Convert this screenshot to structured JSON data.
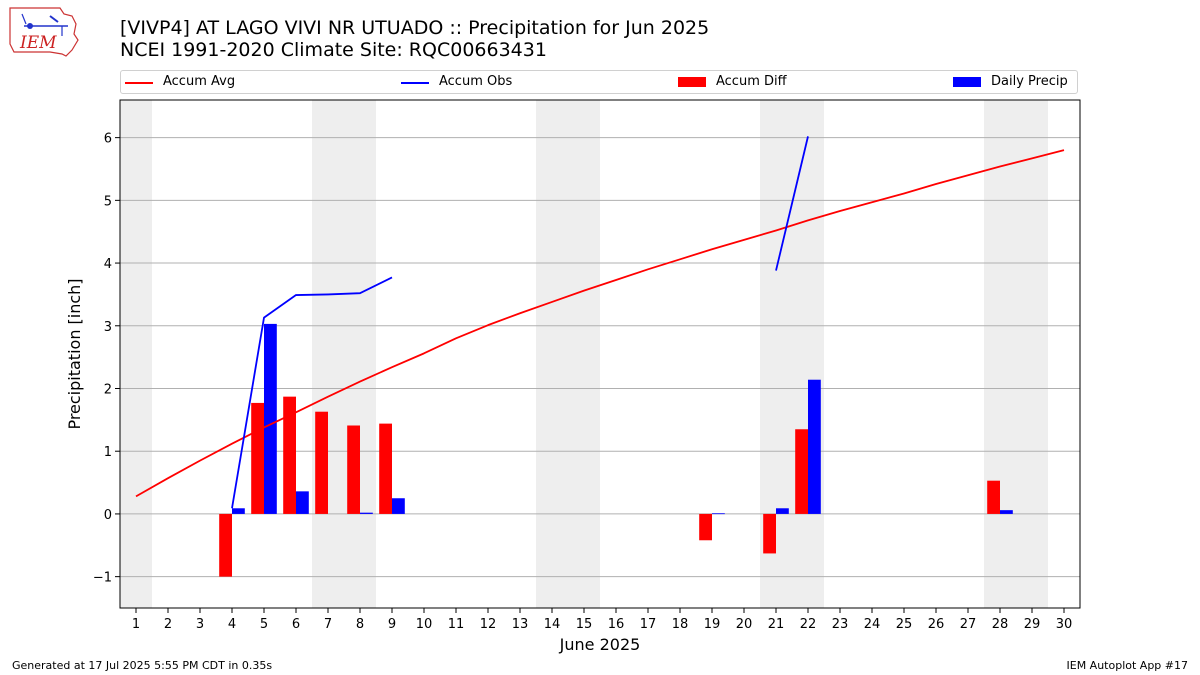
{
  "header": {
    "logo_text": "IEM",
    "title_line1": "[VIVP4] AT LAGO VIVI NR UTUADO :: Precipitation for Jun 2025",
    "title_line2": "NCEI 1991-2020 Climate Site: RQC00663431"
  },
  "legend": {
    "items": [
      {
        "label": "Accum Avg",
        "kind": "line",
        "color": "#ff0000"
      },
      {
        "label": "Accum Obs",
        "kind": "line",
        "color": "#0000ff"
      },
      {
        "label": "Accum Diff",
        "kind": "box",
        "color": "#ff0000"
      },
      {
        "label": "Daily Precip",
        "kind": "box",
        "color": "#0000ff"
      }
    ]
  },
  "footer": {
    "left": "Generated at 17 Jul 2025 5:55 PM CDT in 0.35s",
    "right": "IEM Autoplot App #17"
  },
  "chart_data": {
    "type": "bar",
    "xlabel": "June 2025",
    "ylabel": "Precipitation [inch]",
    "xlim": [
      0.5,
      30.5
    ],
    "ylim": [
      -1.5,
      6.6
    ],
    "yticks": [
      -1,
      0,
      1,
      2,
      3,
      4,
      5,
      6
    ],
    "ytick_labels": [
      "−1",
      "0",
      "1",
      "2",
      "3",
      "4",
      "5",
      "6"
    ],
    "days": [
      1,
      2,
      3,
      4,
      5,
      6,
      7,
      8,
      9,
      10,
      11,
      12,
      13,
      14,
      15,
      16,
      17,
      18,
      19,
      20,
      21,
      22,
      23,
      24,
      25,
      26,
      27,
      28,
      29,
      30
    ],
    "weekend_days": [
      1,
      7,
      8,
      14,
      15,
      21,
      22,
      28,
      29
    ],
    "grid": "horizontal",
    "series": [
      {
        "name": "Accum Avg",
        "type": "line",
        "color": "#ff0000",
        "x": [
          1,
          2,
          3,
          4,
          5,
          6,
          7,
          8,
          9,
          10,
          11,
          12,
          13,
          14,
          15,
          16,
          17,
          18,
          19,
          20,
          21,
          22,
          23,
          24,
          25,
          26,
          27,
          28,
          29,
          30
        ],
        "values": [
          0.28,
          0.57,
          0.85,
          1.12,
          1.38,
          1.62,
          1.87,
          2.11,
          2.34,
          2.56,
          2.8,
          3.01,
          3.2,
          3.38,
          3.56,
          3.73,
          3.9,
          4.06,
          4.22,
          4.37,
          4.52,
          4.68,
          4.83,
          4.97,
          5.11,
          5.26,
          5.4,
          5.54,
          5.67,
          5.8
        ]
      },
      {
        "name": "Accum Obs",
        "type": "line",
        "color": "#0000ff",
        "segments": [
          {
            "x": [
              4,
              5,
              6,
              7,
              8,
              9
            ],
            "values": [
              0.09,
              3.13,
              3.49,
              3.5,
              3.52,
              3.77
            ]
          },
          {
            "x": [
              21,
              22
            ],
            "values": [
              3.88,
              6.02
            ]
          }
        ]
      },
      {
        "name": "Accum Diff",
        "type": "bar",
        "color": "#ff0000",
        "x": [
          4,
          5,
          6,
          7,
          8,
          9,
          19,
          21,
          22,
          28
        ],
        "values": [
          -1.0,
          1.77,
          1.87,
          1.63,
          1.41,
          1.44,
          -0.42,
          -0.63,
          1.35,
          0.53
        ]
      },
      {
        "name": "Daily Precip",
        "type": "bar",
        "color": "#0000ff",
        "x": [
          4,
          5,
          6,
          8,
          9,
          19,
          21,
          22,
          28
        ],
        "values": [
          0.09,
          3.03,
          0.36,
          0.02,
          0.25,
          0.01,
          0.09,
          2.14,
          0.06
        ]
      }
    ]
  }
}
